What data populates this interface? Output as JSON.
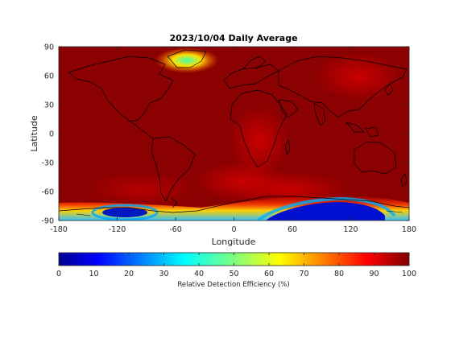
{
  "map": {
    "title": "2023/10/04 Daily Average",
    "xlabel": "Longitude",
    "ylabel": "Latitude",
    "x_ticks": [
      "-180",
      "-120",
      "-60",
      "0",
      "60",
      "120",
      "180"
    ],
    "y_ticks": [
      "90",
      "60",
      "30",
      "0",
      "-30",
      "-60",
      "-90"
    ],
    "x_range": [
      -180,
      180
    ],
    "y_range": [
      -90,
      90
    ],
    "colormap": "jet",
    "background_color": "#8b0000"
  },
  "colorbar": {
    "label": "Relative Detection Efficiency (%)",
    "ticks": [
      "0",
      "10",
      "20",
      "30",
      "40",
      "50",
      "60",
      "70",
      "80",
      "90",
      "100"
    ],
    "range": [
      0,
      100
    ],
    "orientation": "horizontal"
  }
}
